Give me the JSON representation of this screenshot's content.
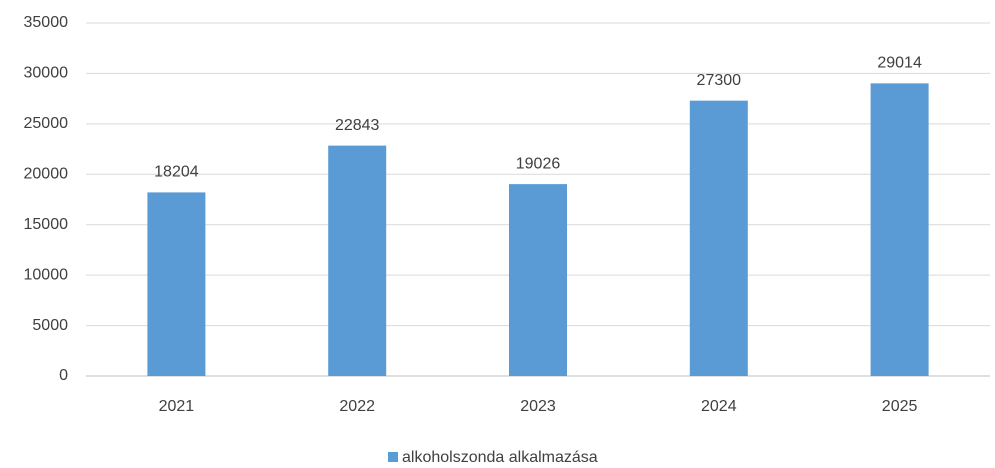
{
  "chart_data": {
    "type": "bar",
    "categories": [
      "2021",
      "2022",
      "2023",
      "2024",
      "2025"
    ],
    "series": [
      {
        "name": "alkoholszonda alkalmazása",
        "color": "#5b9bd5",
        "values": [
          18204,
          22843,
          19026,
          27300,
          29014
        ]
      }
    ],
    "ylim": [
      0,
      35000
    ],
    "yticks": [
      0,
      5000,
      10000,
      15000,
      20000,
      25000,
      30000,
      35000
    ],
    "grid": true,
    "legend": "bottom",
    "data_labels": true
  }
}
